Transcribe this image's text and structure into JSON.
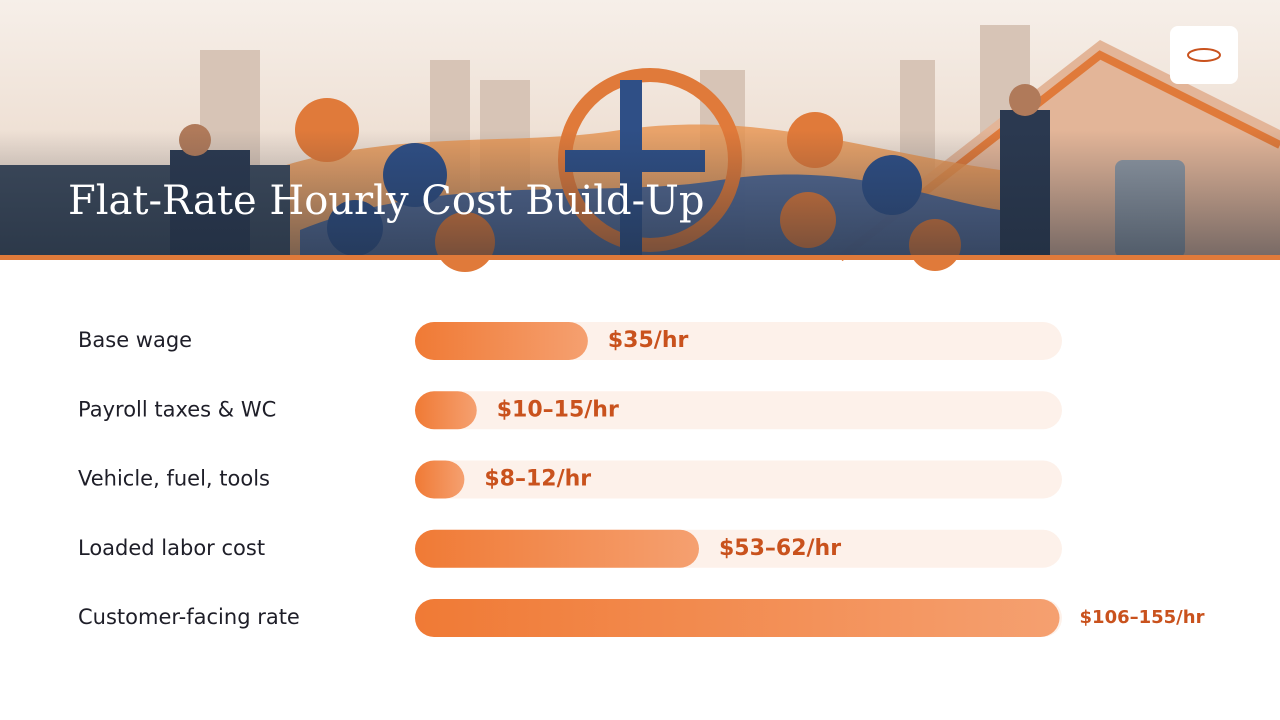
{
  "chart_data": {
    "type": "bar",
    "orientation": "horizontal",
    "title": "Flat-Rate Hourly Cost Build-Up",
    "categories": [
      "Base wage",
      "Payroll taxes & WC",
      "Vehicle, fuel, tools",
      "Loaded labor cost",
      "Customer-facing rate"
    ],
    "values": [
      35,
      12.5,
      10,
      57.5,
      130.5
    ],
    "value_labels": [
      "$35/hr",
      "$10–15/hr",
      "$8–12/hr",
      "$53–62/hr",
      "$106–155/hr"
    ],
    "color": "#f07a35",
    "xlim": [
      0,
      131
    ]
  }
}
